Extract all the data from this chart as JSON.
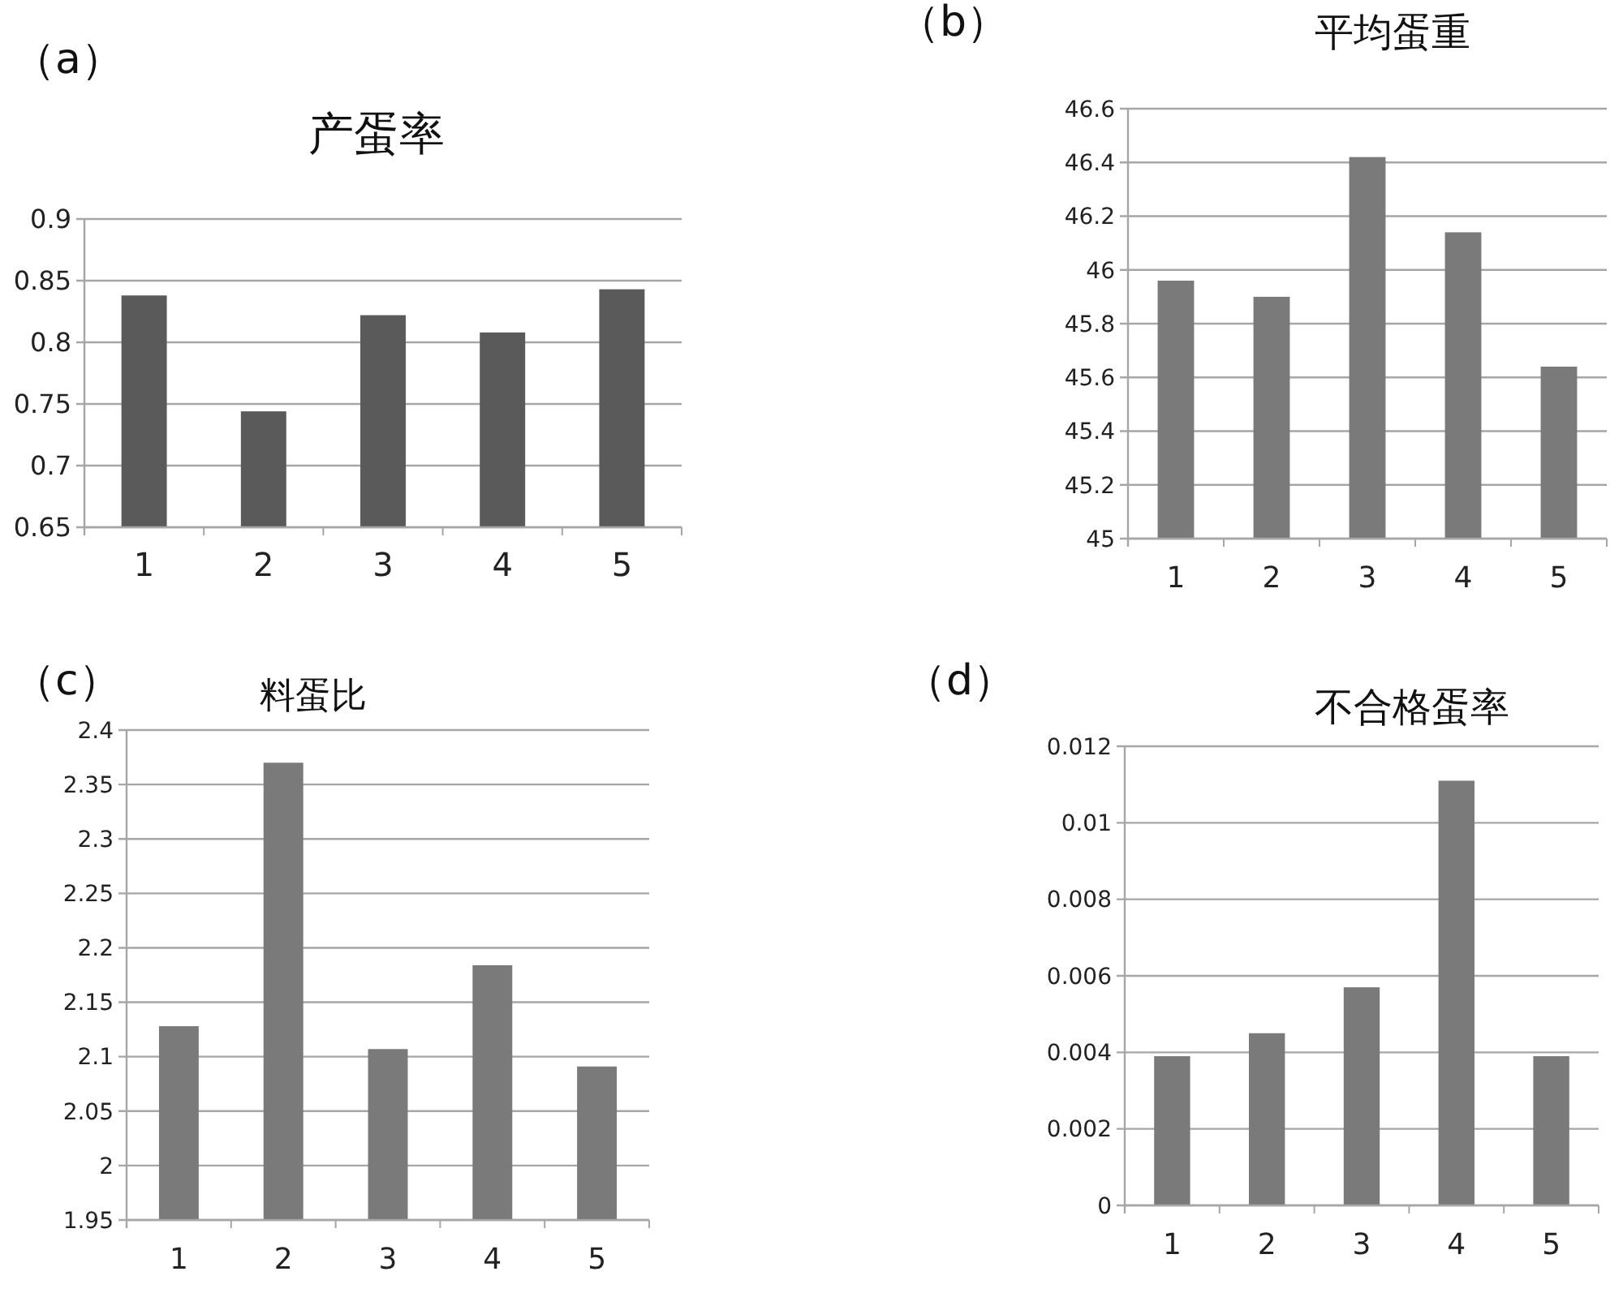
{
  "chart_data": [
    {
      "type": "bar",
      "title": "产蛋率",
      "annotations": [
        "（a）"
      ],
      "categories": [
        "1",
        "2",
        "3",
        "4",
        "5"
      ],
      "values": [
        0.838,
        0.744,
        0.822,
        0.808,
        0.843
      ],
      "color": "#5a5a5a",
      "ylim": [
        0.65,
        0.9
      ],
      "yticks": [
        0.65,
        0.7,
        0.75,
        0.8,
        0.85,
        0.9
      ],
      "grid": "y"
    },
    {
      "type": "bar",
      "title": "平均蛋重",
      "annotations": [
        "（b）"
      ],
      "categories": [
        "1",
        "2",
        "3",
        "4",
        "5"
      ],
      "values": [
        45.96,
        45.9,
        46.42,
        46.14,
        45.64
      ],
      "color": "#7a7a7a",
      "ylim": [
        45,
        46.6
      ],
      "yticks": [
        45,
        45.2,
        45.4,
        45.6,
        45.8,
        46,
        46.2,
        46.4,
        46.6
      ],
      "grid": "y"
    },
    {
      "type": "bar",
      "title": "料蛋比",
      "annotations": [
        "（c）"
      ],
      "categories": [
        "1",
        "2",
        "3",
        "4",
        "5"
      ],
      "values": [
        2.128,
        2.37,
        2.107,
        2.184,
        2.091
      ],
      "color": "#7a7a7a",
      "ylim": [
        1.95,
        2.4
      ],
      "yticks": [
        1.95,
        2,
        2.05,
        2.1,
        2.15,
        2.2,
        2.25,
        2.3,
        2.35,
        2.4
      ],
      "grid": "y"
    },
    {
      "type": "bar",
      "title": "不合格蛋率",
      "annotations": [
        "（d）"
      ],
      "categories": [
        "1",
        "2",
        "3",
        "4",
        "5"
      ],
      "values": [
        0.0039,
        0.0045,
        0.0057,
        0.0111,
        0.0039
      ],
      "color": "#7a7a7a",
      "ylim": [
        0,
        0.012
      ],
      "yticks": [
        0,
        0.002,
        0.004,
        0.006,
        0.008,
        0.01,
        0.012
      ],
      "grid": "y"
    }
  ]
}
